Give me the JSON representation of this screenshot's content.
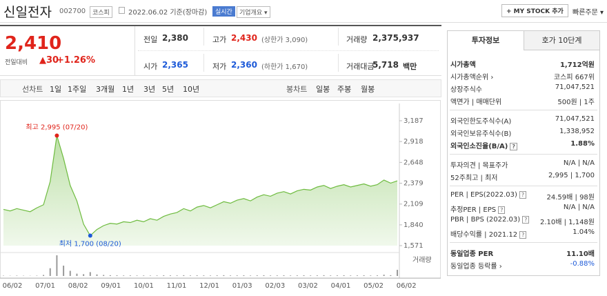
{
  "header": {
    "name": "신일전자",
    "code": "002700",
    "market": "코스피",
    "date": "2022.06.02 기준(장마감)",
    "realtime": "실시간",
    "overview": "기업개요",
    "mystock": "+ MY STOCK 추가",
    "quick_order": "빠른주문"
  },
  "quote": {
    "price": "2,410",
    "change_label": "전일대비",
    "change": "▲30",
    "change_pct": "+1.26%",
    "cells": [
      {
        "label": "전일",
        "value": "2,380"
      },
      {
        "label": "고가",
        "value": "2,430",
        "note": "(상한가 3,090)",
        "tone": "up"
      },
      {
        "label": "거래량",
        "value": "2,375,937"
      },
      {
        "label": "시가",
        "value": "2,365",
        "tone": "down"
      },
      {
        "label": "저가",
        "value": "2,360",
        "note": "(하한가 1,670)",
        "tone": "down"
      },
      {
        "label": "거래대금",
        "value": "5,718",
        "unit": "백만"
      }
    ]
  },
  "tabs": {
    "line": {
      "label": "선차트",
      "items": [
        "1일",
        "1주일",
        "3개월",
        "1년",
        "3년",
        "5년",
        "10년"
      ]
    },
    "candle": {
      "label": "봉차트",
      "items": [
        "일봉",
        "주봉",
        "월봉"
      ]
    }
  },
  "chart": {
    "type": "area",
    "color": "#6dbb3e",
    "high_color": "#e0241b",
    "low_color": "#1d5ad8",
    "values": [
      2040,
      2020,
      2050,
      2030,
      2010,
      2060,
      2100,
      2400,
      2995,
      2700,
      2350,
      2150,
      1850,
      1700,
      1780,
      1830,
      1860,
      1850,
      1880,
      1870,
      1900,
      1880,
      1920,
      1900,
      1950,
      1980,
      2000,
      2050,
      2020,
      2070,
      2090,
      2060,
      2100,
      2140,
      2120,
      2160,
      2180,
      2150,
      2200,
      2230,
      2210,
      2250,
      2270,
      2240,
      2280,
      2300,
      2290,
      2330,
      2350,
      2310,
      2340,
      2360,
      2330,
      2350,
      2370,
      2340,
      2360,
      2420,
      2380,
      2410
    ],
    "volume": [
      120000,
      90000,
      150000,
      100000,
      80000,
      130000,
      400000,
      3000000,
      8000000,
      4000000,
      2000000,
      900000,
      700000,
      1500000,
      600000,
      400000,
      300000,
      250000,
      200000,
      220000,
      180000,
      200000,
      170000,
      190000,
      260000,
      230000,
      210000,
      300000,
      200000,
      250000,
      220000,
      180000,
      240000,
      300000,
      200000,
      220000,
      260000,
      180000,
      240000,
      280000,
      200000,
      220000,
      260000,
      190000,
      230000,
      270000,
      200000,
      240000,
      300000,
      210000,
      230000,
      280000,
      200000,
      220000,
      260000,
      190000,
      240000,
      500000,
      300000,
      2375937
    ],
    "ylim": [
      1571,
      3187
    ],
    "yticks": [
      {
        "value": 1571,
        "label": "1,571"
      },
      {
        "value": 1840,
        "label": "1,840"
      },
      {
        "value": 2109,
        "label": "2,109"
      },
      {
        "value": 2379,
        "label": "2,379"
      },
      {
        "value": 2648,
        "label": "2,648"
      },
      {
        "value": 2918,
        "label": "2,918"
      },
      {
        "value": 3187,
        "label": "3,187"
      }
    ],
    "xlabels": [
      "06/02",
      "07/01",
      "08/02",
      "09/01",
      "10/01",
      "11/01",
      "12/01",
      "01/03",
      "02/03",
      "03/02",
      "04/01",
      "05/02",
      "06/02"
    ],
    "high_label": "최고 2,995 (07/20)",
    "low_label": "최저 1,700 (08/20)",
    "volume_label": "거래량"
  },
  "info": {
    "tabs": [
      "투자정보",
      "호가 10단계"
    ],
    "sections": [
      [
        {
          "label": "시가총액",
          "value": "1,712억원",
          "bold": true
        },
        {
          "label": "시가총액순위",
          "value": "코스피 667위",
          "link": true
        },
        {
          "label": "상장주식수",
          "value": "71,047,521"
        },
        {
          "label": "액면가 | 매매단위",
          "value": "500원 | 1주"
        }
      ],
      [
        {
          "label": "외국인한도주식수(A)",
          "value": "71,047,521"
        },
        {
          "label": "외국인보유주식수(B)",
          "value": "1,338,952"
        },
        {
          "label": "외국인소진율(B/A)",
          "value": "1.88%",
          "bold": true,
          "help": true
        }
      ],
      [
        {
          "label": "투자의견 | 목표주가",
          "value": "N/A | N/A"
        },
        {
          "label": "52주최고 | 최저",
          "value": "2,995 | 1,700"
        }
      ],
      [
        {
          "label": "PER | EPS(2022.03)",
          "value": "24.59배 | 98원",
          "help": true
        },
        {
          "label": "추정PER | EPS",
          "value": "N/A | N/A",
          "help": true
        },
        {
          "label": "PBR | BPS (2022.03)",
          "value": "2.10배 | 1,148원",
          "help": true
        },
        {
          "label": "배당수익률 | 2021.12",
          "value": "1.04%",
          "help": true
        }
      ],
      [
        {
          "label": "동일업종 PER",
          "value": "11.10배",
          "bold": true
        },
        {
          "label": "동일업종 등락률",
          "value": "-0.88%",
          "link": true,
          "tone": "down"
        }
      ]
    ]
  }
}
